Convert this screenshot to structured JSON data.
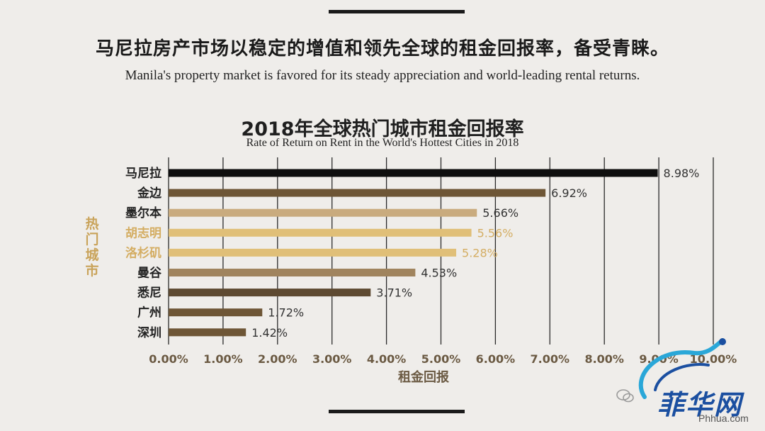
{
  "header": {
    "headline_cn": "马尼拉房产市场以稳定的增值和领先全球的租金回报率，备受青睐。",
    "headline_en": "Manila's property market is favored for its steady appreciation and world-leading rental returns."
  },
  "chart_data": {
    "type": "bar",
    "orientation": "horizontal",
    "title": "2018年全球热门城市租金回报率",
    "subtitle": "Rate of Return on Rent in the World's Hottest Cities in 2018",
    "xlabel": "租金回报",
    "ylabel": "热门城市",
    "xlim": [
      0,
      10
    ],
    "grid": true,
    "x_ticks": [
      "0.00%",
      "1.00%",
      "2.00%",
      "3.00%",
      "4.00%",
      "5.00%",
      "6.00%",
      "7.00%",
      "8.00%",
      "9.00%",
      "10.00%"
    ],
    "categories": [
      "马尼拉",
      "金边",
      "墨尔本",
      "胡志明",
      "洛杉矶",
      "曼谷",
      "悉尼",
      "广州",
      "深圳"
    ],
    "values": [
      8.98,
      6.92,
      5.66,
      5.56,
      5.28,
      4.53,
      3.71,
      1.72,
      1.42
    ],
    "value_labels": [
      "8.98%",
      "6.92%",
      "5.66%",
      "5.56%",
      "5.28%",
      "4.53%",
      "3.71%",
      "1.72%",
      "1.42%"
    ],
    "colors": {
      "highlight": "#0f0f0f",
      "bars": [
        "#0f0f0f",
        "#6e5636",
        "#c9ab7e",
        "#e0bf78",
        "#e0bf78",
        "#a0845e",
        "#5e4a32",
        "#6e5636",
        "#6e5636"
      ],
      "category_text": [
        "#222222",
        "#222222",
        "#222222",
        "#d4ad62",
        "#d4ad62",
        "#222222",
        "#222222",
        "#222222",
        "#222222"
      ],
      "ylabel": "#c9a35a",
      "tick_text": "#6b5a43",
      "grid": "#2a2a2a"
    }
  },
  "watermark": {
    "brand": "菲华网",
    "site": "Phhua.com",
    "colors": {
      "primary": "#1b4fa0",
      "accent": "#2aa7d8"
    }
  }
}
